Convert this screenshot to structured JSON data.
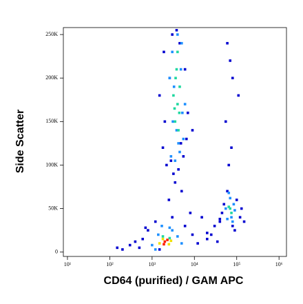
{
  "chart_data": {
    "type": "scatter",
    "x_label": "CD64 (purified) / GAM APC",
    "y_label": "Side Scatter",
    "xscale": "log",
    "xlim": [
      8,
      1500000
    ],
    "xticks": [
      {
        "value": 10,
        "label": "10¹"
      },
      {
        "value": 100,
        "label": "10²"
      },
      {
        "value": 1000,
        "label": "10³"
      },
      {
        "value": 10000,
        "label": "10⁴"
      },
      {
        "value": 100000,
        "label": "10⁵"
      },
      {
        "value": 1000000,
        "label": "10⁶"
      }
    ],
    "ylim": [
      -5000,
      258000
    ],
    "yticks": [
      0,
      {
        "value": 50000,
        "label": "50K"
      },
      {
        "value": 100000,
        "label": "100K"
      },
      {
        "value": 150000,
        "label": "150K"
      },
      {
        "value": 200000,
        "label": "200K"
      },
      {
        "value": 250000,
        "label": "250K"
      }
    ],
    "series": [
      {
        "color": "#0000d0",
        "x": [
          500,
          800,
          1200,
          1500,
          3000,
          6000,
          9000,
          700,
          2500,
          5000,
          8000,
          12000,
          20000,
          30000,
          15000,
          25000,
          40000,
          60000,
          90000,
          120000,
          100000,
          80000,
          50000,
          45000,
          70000,
          110000,
          1800,
          2200,
          3500,
          6500,
          3000,
          4500,
          2600,
          7000,
          5500,
          2000,
          1500,
          9000,
          3200,
          4200,
          60000,
          80000,
          55000,
          75000,
          65000,
          300,
          200,
          150,
          600,
          400,
          2800,
          4800,
          3800,
          1900,
          6000,
          40000,
          130000,
          150000,
          20000,
          35000
        ],
        "values": [
          5000,
          25000,
          35000,
          3000,
          40000,
          30000,
          20000,
          28000,
          60000,
          70000,
          45000,
          10000,
          15000,
          30000,
          40000,
          20000,
          35000,
          70000,
          25000,
          40000,
          60000,
          30000,
          55000,
          45000,
          220000,
          180000,
          120000,
          100000,
          80000,
          130000,
          250000,
          240000,
          200000,
          160000,
          110000,
          150000,
          180000,
          140000,
          90000,
          95000,
          240000,
          200000,
          150000,
          120000,
          100000,
          8000,
          3000,
          5000,
          15000,
          12000,
          105000,
          125000,
          255000,
          230000,
          210000,
          38000,
          50000,
          35000,
          22000,
          12000
        ]
      },
      {
        "color": "#1e90ff",
        "x": [
          2800,
          3500,
          4500,
          5500,
          3000,
          4000,
          5000,
          2600,
          3300,
          4800,
          6000,
          3800,
          4200,
          3100,
          5200,
          1000,
          1400,
          3000,
          4000,
          1200,
          2600,
          5000,
          1700,
          60000,
          75000,
          85000,
          55000,
          70000,
          90000,
          65000,
          80000
        ],
        "values": [
          110000,
          105000,
          115000,
          130000,
          230000,
          250000,
          240000,
          200000,
          190000,
          210000,
          170000,
          140000,
          125000,
          150000,
          160000,
          8000,
          20000,
          25000,
          18000,
          3000,
          28000,
          10000,
          30000,
          38000,
          40000,
          55000,
          50000,
          62000,
          48000,
          68000,
          35000
        ]
      },
      {
        "color": "#20d8a0",
        "x": [
          3500,
          4000,
          4500,
          3200,
          3800,
          4200,
          3600,
          4400,
          3400,
          4000,
          70000,
          75000,
          65000,
          1800,
          2600
        ],
        "values": [
          150000,
          170000,
          190000,
          180000,
          210000,
          140000,
          200000,
          160000,
          165000,
          230000,
          50000,
          45000,
          52000,
          18000,
          16000
        ]
      },
      {
        "color": "#f0e000",
        "x": [
          1800,
          2500,
          1500,
          2800
        ],
        "values": [
          15000,
          9000,
          10000,
          13000
        ]
      },
      {
        "color": "#ff2000",
        "x": [
          2000,
          2300,
          1900
        ],
        "values": [
          12000,
          14000,
          9000
        ]
      }
    ]
  }
}
